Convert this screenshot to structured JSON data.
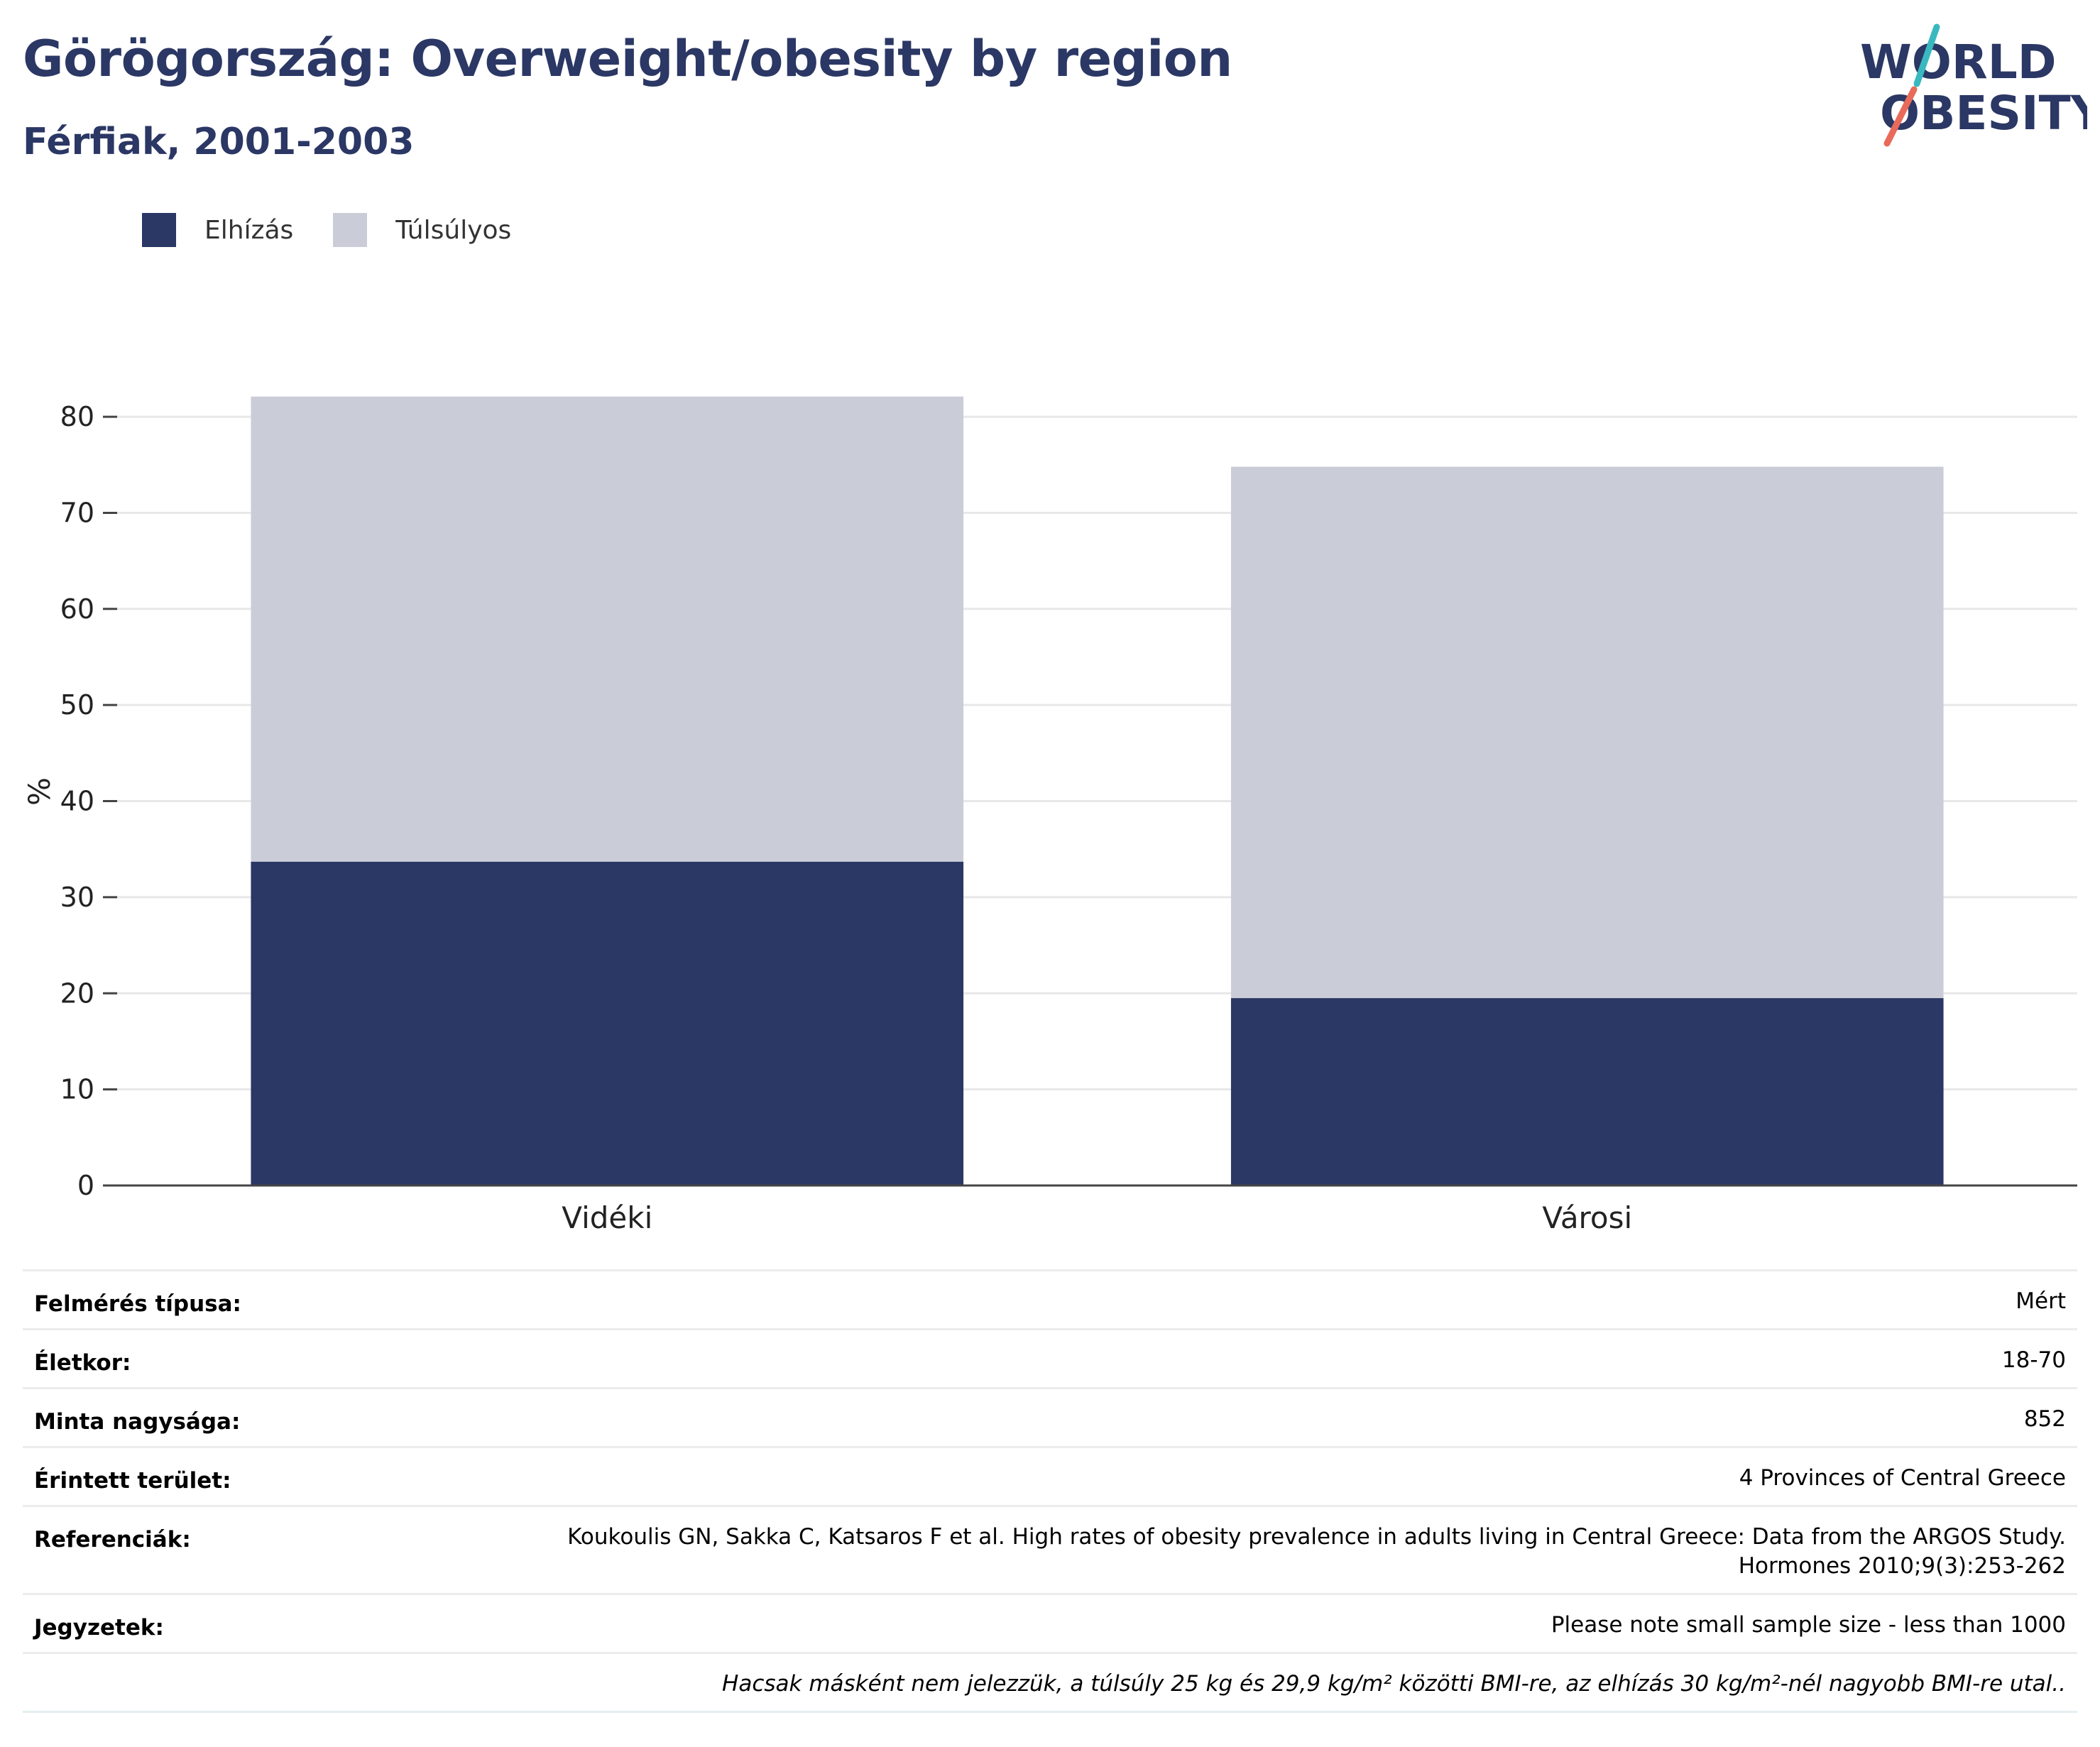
{
  "header": {
    "title": "Görögország: Overweight/obesity by region",
    "subtitle": "Férfiak, 2001-2003"
  },
  "logo": {
    "line1": "WORLD",
    "line2": "OBESITY"
  },
  "colors": {
    "obesity": "#2b3764",
    "overweight": "#cacdd8",
    "text": "#2b3764",
    "grid": "#e8e8e8"
  },
  "chart_data": {
    "type": "bar",
    "stacked": true,
    "categories": [
      "Vidéki",
      "Városi"
    ],
    "series": [
      {
        "name": "Elhízás",
        "color": "#2b3764",
        "values": [
          33.7,
          19.5
        ]
      },
      {
        "name": "Túlsúlyos",
        "color": "#cacdd8",
        "values": [
          48.4,
          55.3
        ]
      }
    ],
    "ylabel": "%",
    "ylim": [
      0,
      82
    ],
    "yticks": [
      0,
      10,
      20,
      30,
      40,
      50,
      60,
      70,
      80
    ],
    "grid": true,
    "legend": "top-left"
  },
  "info": {
    "rows": [
      {
        "label": "Felmérés típusa:",
        "value": "Mért"
      },
      {
        "label": "Életkor:",
        "value": "18-70"
      },
      {
        "label": "Minta nagysága:",
        "value": "852"
      },
      {
        "label": "Érintett terület:",
        "value": "4 Provinces of Central Greece"
      },
      {
        "label": "Referenciák:",
        "value": "Koukoulis GN, Sakka C, Katsaros F et al. High rates of obesity prevalence in adults living in Central Greece: Data from the ARGOS Study.\nHormones 2010;9(3):253-262"
      },
      {
        "label": "Jegyzetek:",
        "value": "Please note small sample size - less than 1000"
      }
    ],
    "footnote": "Hacsak másként nem jelezzük, a túlsúly 25 kg és 29,9 kg/m² közötti BMI-re, az elhízás 30 kg/m²-nél nagyobb BMI-re utal.."
  }
}
